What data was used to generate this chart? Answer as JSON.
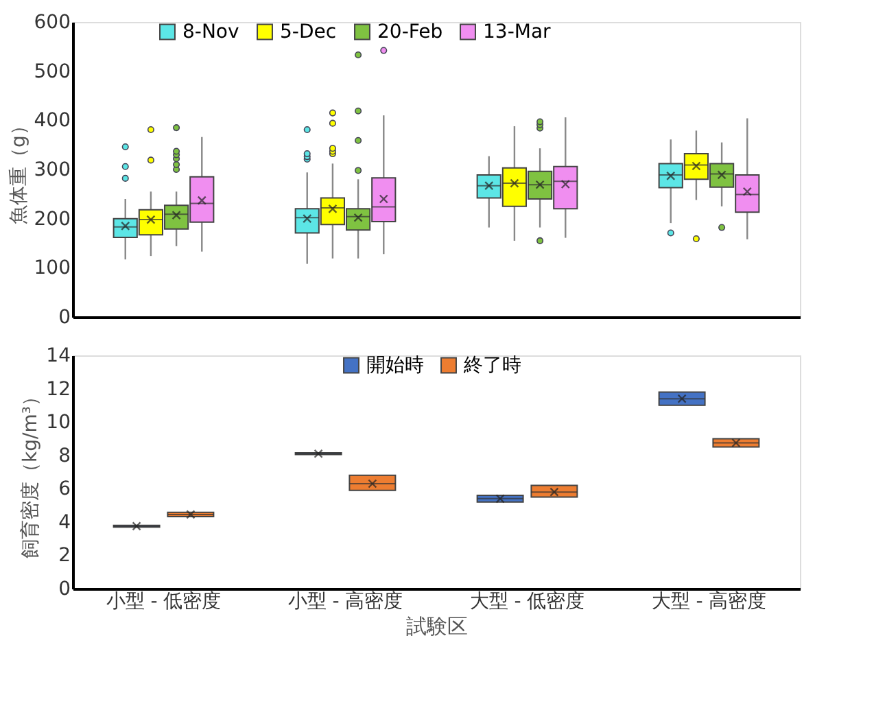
{
  "chart_data": [
    {
      "type": "box",
      "ylabel": "魚体重（g）",
      "categories": [
        null,
        null,
        null,
        null
      ],
      "ylim": [
        0,
        600
      ],
      "yticks": [
        0,
        100,
        200,
        300,
        400,
        500,
        600
      ],
      "grid": false,
      "legend": "top",
      "tick_labels": "y",
      "series": [
        {
          "name": "8-Nov",
          "color": "#5ce6e6",
          "boxes": [
            {
              "low": 117,
              "q1": 162,
              "median": 183,
              "q3": 200,
              "high": 240,
              "mean": 185,
              "outliers": [
                282,
                306,
                346
              ]
            },
            {
              "low": 108,
              "q1": 171,
              "median": 202,
              "q3": 220,
              "high": 294,
              "mean": 200,
              "outliers": [
                321,
                326,
                332,
                381
              ]
            },
            {
              "low": 182,
              "q1": 242,
              "median": 267,
              "q3": 289,
              "high": 327,
              "mean": 267
            },
            {
              "low": 191,
              "q1": 263,
              "median": 289,
              "q3": 312,
              "high": 361,
              "mean": 287,
              "outliers": [
                171
              ]
            }
          ]
        },
        {
          "name": "5-Dec",
          "color": "#ffff00",
          "boxes": [
            {
              "low": 124,
              "q1": 167,
              "median": 198,
              "q3": 218,
              "high": 255,
              "mean": 198,
              "outliers": [
                319,
                381
              ]
            },
            {
              "low": 119,
              "q1": 188,
              "median": 222,
              "q3": 242,
              "high": 312,
              "mean": 220,
              "outliers": [
                332,
                337,
                343,
                394,
                415
              ]
            },
            {
              "low": 155,
              "q1": 225,
              "median": 272,
              "q3": 303,
              "high": 388,
              "mean": 272
            },
            {
              "low": 238,
              "q1": 280,
              "median": 309,
              "q3": 332,
              "high": 379,
              "mean": 307,
              "outliers": [
                159
              ]
            }
          ]
        },
        {
          "name": "20-Feb",
          "color": "#7fc241",
          "boxes": [
            {
              "low": 144,
              "q1": 179,
              "median": 209,
              "q3": 227,
              "high": 255,
              "mean": 207,
              "outliers": [
                300,
                310,
                322,
                330,
                337,
                385
              ]
            },
            {
              "low": 119,
              "q1": 177,
              "median": 204,
              "q3": 220,
              "high": 280,
              "mean": 202,
              "outliers": [
                298,
                359,
                419,
                533
              ]
            },
            {
              "low": 182,
              "q1": 240,
              "median": 269,
              "q3": 296,
              "high": 343,
              "mean": 269,
              "outliers": [
                155,
                384,
                391,
                397
              ]
            },
            {
              "low": 225,
              "q1": 264,
              "median": 291,
              "q3": 312,
              "high": 355,
              "mean": 289,
              "outliers": [
                182
              ]
            }
          ]
        },
        {
          "name": "13-Mar",
          "color": "#f08ef0",
          "boxes": [
            {
              "low": 133,
              "q1": 193,
              "median": 231,
              "q3": 285,
              "high": 366,
              "mean": 237
            },
            {
              "low": 128,
              "q1": 194,
              "median": 224,
              "q3": 283,
              "high": 410,
              "mean": 240,
              "outliers": [
                542
              ]
            },
            {
              "low": 161,
              "q1": 220,
              "median": 276,
              "q3": 306,
              "high": 406,
              "mean": 270
            },
            {
              "low": 158,
              "q1": 213,
              "median": 249,
              "q3": 289,
              "high": 404,
              "mean": 255
            }
          ]
        }
      ]
    },
    {
      "type": "box",
      "xlabel": "試験区",
      "ylabel": "飼育密度（kg/m³）",
      "categories": [
        "小型 - 低密度",
        "小型 - 高密度",
        "大型 - 低密度",
        "大型 - 高密度"
      ],
      "ylim": [
        0,
        14
      ],
      "yticks": [
        0,
        2,
        4,
        6,
        8,
        10,
        12,
        14
      ],
      "grid": false,
      "legend": "top",
      "series": [
        {
          "name": "開始時",
          "color": "#4472c4",
          "boxes": [
            {
              "low": 3.7,
              "q1": 3.7,
              "median": 3.75,
              "q3": 3.8,
              "high": 3.8,
              "mean": 3.75
            },
            {
              "low": 8.05,
              "q1": 8.05,
              "median": 8.1,
              "q3": 8.15,
              "high": 8.15,
              "mean": 8.1
            },
            {
              "low": 5.2,
              "q1": 5.2,
              "median": 5.4,
              "q3": 5.6,
              "high": 5.6,
              "mean": 5.4
            },
            {
              "low": 11.0,
              "q1": 11.0,
              "median": 11.4,
              "q3": 11.8,
              "high": 11.8,
              "mean": 11.4
            }
          ]
        },
        {
          "name": "終了時",
          "color": "#ed7d31",
          "boxes": [
            {
              "low": 4.32,
              "q1": 4.32,
              "median": 4.45,
              "q3": 4.58,
              "high": 4.58,
              "mean": 4.45
            },
            {
              "low": 5.9,
              "q1": 5.9,
              "median": 6.3,
              "q3": 6.8,
              "high": 6.8,
              "mean": 6.3
            },
            {
              "low": 5.5,
              "q1": 5.5,
              "median": 5.8,
              "q3": 6.2,
              "high": 6.2,
              "mean": 5.8
            },
            {
              "low": 8.5,
              "q1": 8.5,
              "median": 8.75,
              "q3": 9.0,
              "high": 9.0,
              "mean": 8.75
            }
          ]
        }
      ]
    }
  ]
}
